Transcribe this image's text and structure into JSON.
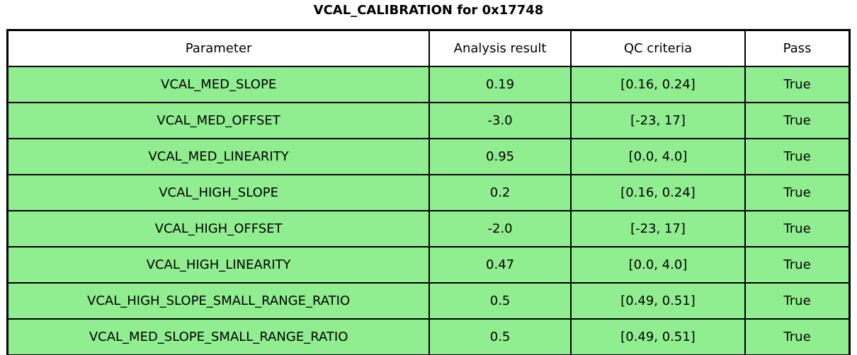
{
  "title": "VCAL_CALIBRATION for 0x17748",
  "colors": {
    "row_fill": "#90EE90",
    "header_fill": "#ffffff",
    "grid_line": "#000000",
    "text": "#000000"
  },
  "chart_data": {
    "type": "table",
    "title": "VCAL_CALIBRATION for 0x17748",
    "columns": [
      "Parameter",
      "Analysis result",
      "QC criteria",
      "Pass"
    ],
    "rows": [
      [
        "VCAL_MED_SLOPE",
        "0.19",
        "[0.16, 0.24]",
        "True"
      ],
      [
        "VCAL_MED_OFFSET",
        "-3.0",
        "[-23, 17]",
        "True"
      ],
      [
        "VCAL_MED_LINEARITY",
        "0.95",
        "[0.0, 4.0]",
        "True"
      ],
      [
        "VCAL_HIGH_SLOPE",
        "0.2",
        "[0.16, 0.24]",
        "True"
      ],
      [
        "VCAL_HIGH_OFFSET",
        "-2.0",
        "[-23, 17]",
        "True"
      ],
      [
        "VCAL_HIGH_LINEARITY",
        "0.47",
        "[0.0, 4.0]",
        "True"
      ],
      [
        "VCAL_HIGH_SLOPE_SMALL_RANGE_RATIO",
        "0.5",
        "[0.49, 0.51]",
        "True"
      ],
      [
        "VCAL_MED_SLOPE_SMALL_RANGE_RATIO",
        "0.5",
        "[0.49, 0.51]",
        "True"
      ]
    ],
    "layout_hints": {
      "header_background": "white",
      "row_background": "lightgreen",
      "all_pass": true,
      "grid": true
    }
  }
}
